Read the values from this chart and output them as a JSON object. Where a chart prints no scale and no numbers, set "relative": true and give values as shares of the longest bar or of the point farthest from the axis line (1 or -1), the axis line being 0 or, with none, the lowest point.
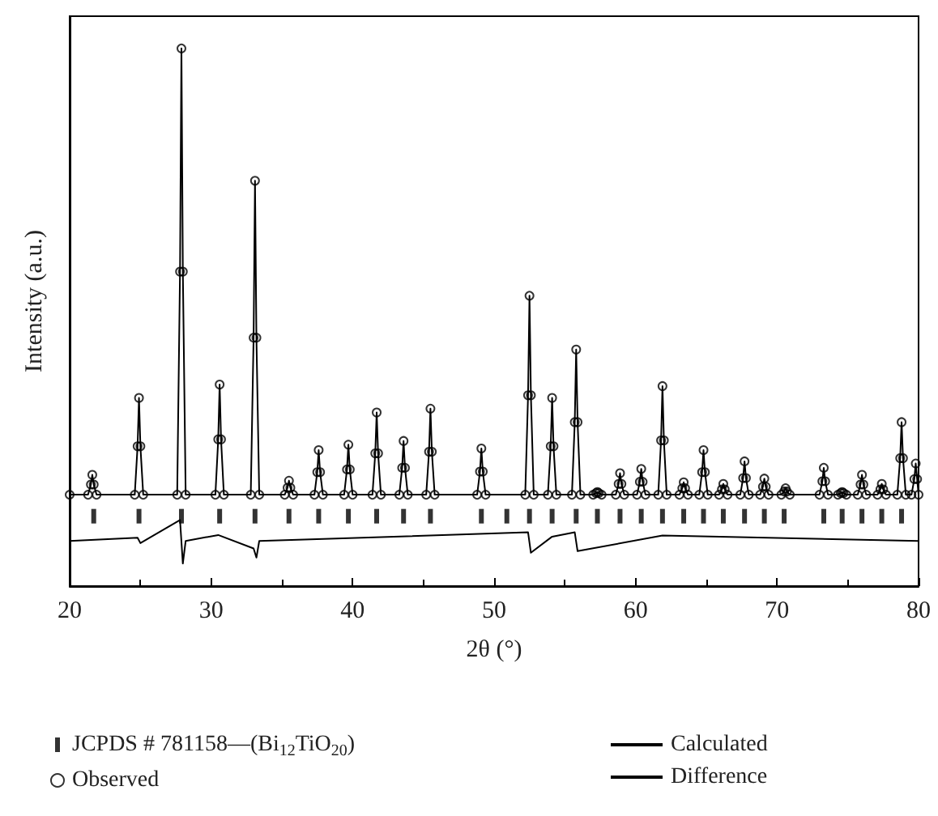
{
  "chart_data": {
    "type": "line",
    "relative": true,
    "xlabel": "2θ (°)",
    "ylabel": "Intensity (a.u.)",
    "xlim": [
      20,
      80
    ],
    "xticks": [
      20,
      30,
      40,
      50,
      60,
      70,
      80
    ],
    "legend": "bottom",
    "grid": false,
    "x": [
      20,
      21.3,
      21.5,
      21.6,
      21.7,
      21.9,
      24.6,
      24.8,
      24.9,
      25.0,
      25.2,
      27.6,
      27.8,
      27.9,
      28.0,
      28.2,
      30.3,
      30.5,
      30.6,
      30.7,
      30.9,
      32.8,
      33.0,
      33.1,
      33.2,
      33.4,
      35.2,
      35.4,
      35.5,
      35.6,
      35.8,
      37.3,
      37.5,
      37.6,
      37.7,
      37.9,
      39.4,
      39.6,
      39.7,
      39.8,
      40.0,
      41.4,
      41.6,
      41.7,
      41.8,
      42.0,
      43.3,
      43.5,
      43.6,
      43.7,
      43.9,
      45.2,
      45.4,
      45.5,
      45.6,
      45.8,
      48.8,
      49.0,
      49.1,
      49.2,
      49.4,
      52.2,
      52.4,
      52.5,
      52.6,
      52.8,
      53.8,
      54.0,
      54.1,
      54.2,
      54.4,
      55.5,
      55.7,
      55.8,
      55.9,
      56.1,
      57.0,
      57.2,
      57.3,
      57.4,
      57.6,
      58.6,
      58.8,
      58.9,
      59.0,
      59.2,
      60.1,
      60.3,
      60.4,
      60.5,
      60.7,
      61.6,
      61.8,
      61.9,
      62.0,
      62.2,
      63.1,
      63.3,
      63.4,
      63.5,
      63.7,
      64.5,
      64.7,
      64.8,
      64.9,
      65.1,
      65.9,
      66.1,
      66.2,
      66.3,
      66.5,
      67.4,
      67.6,
      67.7,
      67.8,
      68.0,
      68.8,
      69.0,
      69.1,
      69.2,
      69.4,
      70.3,
      70.5,
      70.6,
      70.7,
      70.9,
      73.0,
      73.2,
      73.3,
      73.4,
      73.6,
      74.3,
      74.5,
      74.6,
      74.7,
      74.9,
      75.7,
      75.9,
      76.0,
      76.1,
      76.3,
      77.1,
      77.3,
      77.4,
      77.5,
      77.7,
      78.5,
      78.7,
      78.8,
      78.9,
      79.1,
      79.5,
      79.7,
      79.8,
      79.9,
      80
    ],
    "series": [
      {
        "name": "JCPDS # 781158—(Bi$_{12}$TiO$_{20}$)",
        "type": "scatter",
        "marker": "square",
        "color": "#000000",
        "x": [
          21.7,
          24.9,
          27.9,
          30.6,
          33.1,
          35.5,
          37.6,
          39.7,
          41.7,
          43.6,
          45.5,
          49.1,
          50.9,
          52.5,
          54.1,
          55.8,
          57.3,
          58.9,
          60.4,
          61.9,
          63.4,
          64.8,
          66.2,
          67.7,
          69.1,
          70.5,
          73.3,
          74.6,
          76.0,
          77.4,
          78.8
        ],
        "values": [
          0.13,
          0.13,
          0.13,
          0.13,
          0.13,
          0.13,
          0.13,
          0.13,
          0.13,
          0.13,
          0.13,
          0.13,
          0.13,
          0.13,
          0.13,
          0.13,
          0.13,
          0.13,
          0.13,
          0.13,
          0.13,
          0.13,
          0.13,
          0.13,
          0.13,
          0.13,
          0.13,
          0.13,
          0.13,
          0.13,
          0.13
        ]
      },
      {
        "name": "Observed",
        "type": "scatter",
        "marker": "circle",
        "color": "#000000",
        "values": [
          0.17,
          0.17,
          0.189,
          0.207,
          0.189,
          0.17,
          0.17,
          0.26,
          0.35,
          0.26,
          0.17,
          0.17,
          0.585,
          1.0,
          0.585,
          0.17,
          0.17,
          0.273,
          0.375,
          0.273,
          0.17,
          0.17,
          0.462,
          0.754,
          0.462,
          0.17,
          0.17,
          0.183,
          0.196,
          0.183,
          0.17,
          0.17,
          0.212,
          0.253,
          0.212,
          0.17,
          0.17,
          0.217,
          0.263,
          0.217,
          0.17,
          0.17,
          0.247,
          0.323,
          0.247,
          0.17,
          0.17,
          0.22,
          0.27,
          0.22,
          0.17,
          0.17,
          0.25,
          0.33,
          0.25,
          0.17,
          0.17,
          0.213,
          0.256,
          0.213,
          0.17,
          0.17,
          0.355,
          0.54,
          0.355,
          0.17,
          0.17,
          0.26,
          0.35,
          0.26,
          0.17,
          0.17,
          0.305,
          0.44,
          0.305,
          0.17,
          0.17,
          0.173,
          0.175,
          0.173,
          0.17,
          0.17,
          0.19,
          0.21,
          0.19,
          0.17,
          0.17,
          0.194,
          0.218,
          0.194,
          0.17,
          0.17,
          0.271,
          0.372,
          0.271,
          0.17,
          0.17,
          0.182,
          0.193,
          0.182,
          0.17,
          0.17,
          0.212,
          0.253,
          0.212,
          0.17,
          0.17,
          0.18,
          0.19,
          0.18,
          0.17,
          0.17,
          0.201,
          0.232,
          0.201,
          0.17,
          0.17,
          0.185,
          0.2,
          0.185,
          0.17,
          0.17,
          0.176,
          0.182,
          0.176,
          0.17,
          0.17,
          0.195,
          0.22,
          0.195,
          0.17,
          0.17,
          0.173,
          0.175,
          0.173,
          0.17,
          0.17,
          0.189,
          0.207,
          0.189,
          0.17,
          0.17,
          0.18,
          0.19,
          0.18,
          0.17,
          0.17,
          0.238,
          0.305,
          0.238,
          0.17,
          0.17,
          0.199,
          0.228,
          0.199,
          0.17
        ]
      },
      {
        "name": "Calculated",
        "marker": "none",
        "line_style": "solid",
        "color": "#000000",
        "values": [
          0.17,
          0.17,
          0.189,
          0.207,
          0.189,
          0.17,
          0.17,
          0.26,
          0.35,
          0.26,
          0.17,
          0.17,
          0.585,
          1.0,
          0.585,
          0.17,
          0.17,
          0.273,
          0.375,
          0.273,
          0.17,
          0.17,
          0.462,
          0.754,
          0.462,
          0.17,
          0.17,
          0.183,
          0.196,
          0.183,
          0.17,
          0.17,
          0.212,
          0.253,
          0.212,
          0.17,
          0.17,
          0.217,
          0.263,
          0.217,
          0.17,
          0.17,
          0.247,
          0.323,
          0.247,
          0.17,
          0.17,
          0.22,
          0.27,
          0.22,
          0.17,
          0.17,
          0.25,
          0.33,
          0.25,
          0.17,
          0.17,
          0.213,
          0.256,
          0.213,
          0.17,
          0.17,
          0.355,
          0.54,
          0.355,
          0.17,
          0.17,
          0.26,
          0.35,
          0.26,
          0.17,
          0.17,
          0.305,
          0.44,
          0.305,
          0.17,
          0.17,
          0.173,
          0.175,
          0.173,
          0.17,
          0.17,
          0.19,
          0.21,
          0.19,
          0.17,
          0.17,
          0.194,
          0.218,
          0.194,
          0.17,
          0.17,
          0.271,
          0.372,
          0.271,
          0.17,
          0.17,
          0.182,
          0.193,
          0.182,
          0.17,
          0.17,
          0.212,
          0.253,
          0.212,
          0.17,
          0.17,
          0.18,
          0.19,
          0.18,
          0.17,
          0.17,
          0.201,
          0.232,
          0.201,
          0.17,
          0.17,
          0.185,
          0.2,
          0.185,
          0.17,
          0.17,
          0.176,
          0.182,
          0.176,
          0.17,
          0.17,
          0.195,
          0.22,
          0.195,
          0.17,
          0.17,
          0.173,
          0.175,
          0.173,
          0.17,
          0.17,
          0.189,
          0.207,
          0.189,
          0.17,
          0.17,
          0.18,
          0.19,
          0.18,
          0.17,
          0.17,
          0.238,
          0.305,
          0.238,
          0.17,
          0.17,
          0.199,
          0.228,
          0.199,
          0.17
        ]
      },
      {
        "name": "Difference",
        "marker": "none",
        "line_style": "solid",
        "color": "#000000",
        "x": [
          20,
          24.8,
          25.0,
          27.8,
          28.0,
          28.2,
          30.5,
          33.0,
          33.2,
          33.4,
          52.4,
          52.6,
          54.1,
          55.7,
          55.9,
          61.9,
          80
        ],
        "values": [
          0.084,
          0.09,
          0.08,
          0.123,
          0.042,
          0.084,
          0.095,
          0.07,
          0.053,
          0.084,
          0.1,
          0.062,
          0.092,
          0.1,
          0.065,
          0.094,
          0.084
        ]
      }
    ]
  }
}
